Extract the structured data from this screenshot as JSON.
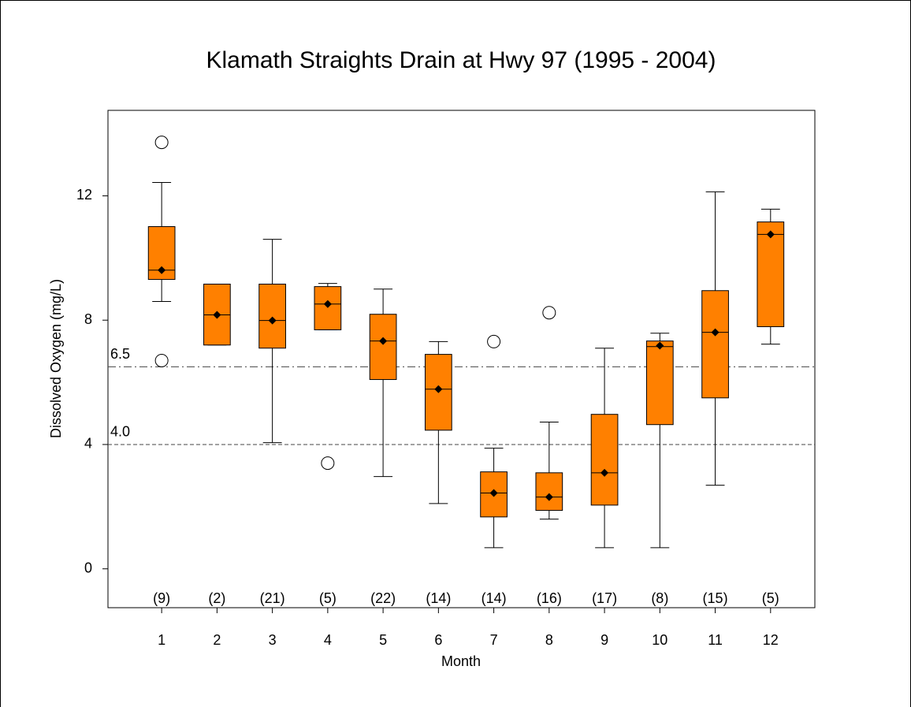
{
  "chart_data": {
    "type": "box",
    "title": "Klamath Straights Drain at Hwy 97 (1995 - 2004)",
    "x_label": "Month",
    "y_label": "Dissolved Oxygen (mg/L)",
    "x": [
      1,
      2,
      3,
      4,
      5,
      6,
      7,
      8,
      9,
      10,
      11,
      12
    ],
    "xlim": [
      0.03,
      12.8
    ],
    "xticks": [
      1,
      2,
      3,
      4,
      5,
      6,
      7,
      8,
      9,
      10,
      11,
      12
    ],
    "ylim": [
      -1.25,
      14.75
    ],
    "yticks": [
      0,
      4,
      8,
      12
    ],
    "color": "#ff8000",
    "count_labels": [
      "(9)",
      "(2)",
      "(21)",
      "(5)",
      "(22)",
      "(14)",
      "(14)",
      "(16)",
      "(17)",
      "(8)",
      "(15)",
      "(5)"
    ],
    "boxes": [
      {
        "min": 8.6,
        "q1": 9.31,
        "median": 9.61,
        "q3": 11.01,
        "max": 12.43,
        "mean": 9.61,
        "outliers": [
          13.72,
          6.7
        ]
      },
      {
        "min": 7.2,
        "q1": 7.2,
        "median": 8.17,
        "q3": 9.16,
        "max": 9.16,
        "mean": 8.17,
        "outliers": []
      },
      {
        "min": 4.06,
        "q1": 7.1,
        "median": 7.99,
        "q3": 9.16,
        "max": 10.6,
        "mean": 7.99,
        "outliers": []
      },
      {
        "min": 7.69,
        "q1": 7.69,
        "median": 8.52,
        "q3": 9.08,
        "max": 9.18,
        "mean": 8.52,
        "outliers": [
          3.4
        ]
      },
      {
        "min": 2.97,
        "q1": 6.09,
        "median": 7.33,
        "q3": 8.19,
        "max": 9.0,
        "mean": 7.33,
        "outliers": []
      },
      {
        "min": 2.1,
        "q1": 4.46,
        "median": 5.78,
        "q3": 6.9,
        "max": 7.31,
        "mean": 5.78,
        "outliers": []
      },
      {
        "min": 0.68,
        "q1": 1.67,
        "median": 2.44,
        "q3": 3.12,
        "max": 3.88,
        "mean": 2.44,
        "outliers": [
          7.31
        ]
      },
      {
        "min": 1.6,
        "q1": 1.88,
        "median": 2.31,
        "q3": 3.09,
        "max": 4.72,
        "mean": 2.31,
        "outliers": [
          8.24
        ]
      },
      {
        "min": 0.68,
        "q1": 2.05,
        "median": 3.09,
        "q3": 4.97,
        "max": 7.1,
        "mean": 3.09,
        "outliers": []
      },
      {
        "min": 0.68,
        "q1": 4.64,
        "median": 7.15,
        "q3": 7.33,
        "max": 7.58,
        "mean": 7.18,
        "outliers": []
      },
      {
        "min": 2.69,
        "q1": 5.5,
        "median": 7.61,
        "q3": 8.95,
        "max": 12.13,
        "mean": 7.61,
        "outliers": []
      },
      {
        "min": 7.23,
        "q1": 7.79,
        "median": 10.76,
        "q3": 11.16,
        "max": 11.57,
        "mean": 10.76,
        "outliers": []
      }
    ],
    "reference_lines": [
      {
        "value": 6.5,
        "label": "6.5",
        "style": "dashdot"
      },
      {
        "value": 4,
        "label": "4.0",
        "style": "dashed"
      }
    ]
  }
}
